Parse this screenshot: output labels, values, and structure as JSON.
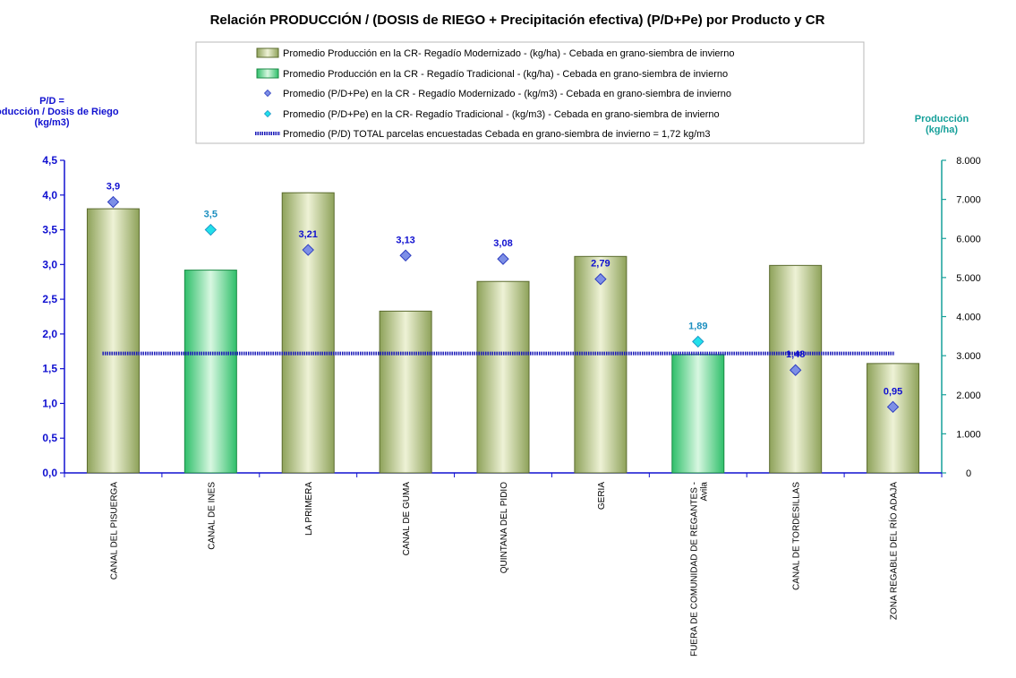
{
  "chart_data": {
    "type": "bar",
    "title": "Relación PRODUCCIÓN / (DOSIS de RIEGO + Precipitación efectiva)  (P/D+Pe) por Producto y CR",
    "y_left": {
      "label_lines": [
        "P/D =",
        "Producción / Dosis de Riego",
        "(kg/m3)"
      ],
      "range": [
        0,
        4.5
      ],
      "ticks": [
        "0,0",
        "0,5",
        "1,0",
        "1,5",
        "2,0",
        "2,5",
        "3,0",
        "3,5",
        "4,0",
        "4,5"
      ]
    },
    "y_right": {
      "label_lines": [
        "Producción",
        "(kg/ha)"
      ],
      "range": [
        0,
        8000
      ],
      "ticks": [
        "0",
        "1.000",
        "2.000",
        "3.000",
        "4.000",
        "5.000",
        "6.000",
        "7.000",
        "8.000"
      ]
    },
    "categories": [
      [
        "CANAL DEL PISUERGA"
      ],
      [
        "CANAL DE INES"
      ],
      [
        "LA PRIMERA"
      ],
      [
        "CANAL DE GUMA"
      ],
      [
        "QUINTANA DEL PIDIO"
      ],
      [
        "GERIA"
      ],
      [
        "FUERA DE COMUNIDAD DE REGANTES -",
        "Avila"
      ],
      [
        "CANAL DE TORDESILLAS"
      ],
      [
        "ZONA REGABLE DEL RÍO ADAJA"
      ]
    ],
    "series": [
      {
        "name": "Promedio Producción en la CR- Regadío Modernizado -  (kg/ha) - Cebada en grano-siembra de invierno",
        "kind": "bar",
        "axis": "right",
        "color": "#8ea25a",
        "values": [
          6760,
          null,
          7170,
          4140,
          4900,
          5540,
          null,
          5310,
          2800
        ]
      },
      {
        "name": "Promedio Producción en la CR - Regadío Tradicional -  (kg/ha) - Cebada en grano-siembra de invierno",
        "kind": "bar",
        "axis": "right",
        "color": "#2fbf6a",
        "values": [
          null,
          5190,
          null,
          null,
          null,
          null,
          3030,
          null,
          null
        ]
      },
      {
        "name": "Promedio (P/D+Pe) en la CR - Regadío Modernizado - (kg/m3) - Cebada en grano-siembra de invierno",
        "kind": "marker",
        "axis": "left",
        "color": "#7d8fe6",
        "values": [
          3.9,
          null,
          3.21,
          3.13,
          3.08,
          2.79,
          null,
          1.48,
          0.95
        ],
        "labels": [
          "3,9",
          null,
          "3,21",
          "3,13",
          "3,08",
          "2,79",
          null,
          "1,48",
          "0,95"
        ]
      },
      {
        "name": "Promedio (P/D+Pe) en la CR- Regadío Tradicional - (kg/m3) - Cebada en grano-siembra de invierno",
        "kind": "marker",
        "axis": "left",
        "color": "#22e0ea",
        "values": [
          null,
          3.5,
          null,
          null,
          null,
          null,
          1.89,
          null,
          null
        ],
        "labels": [
          null,
          "3,5",
          null,
          null,
          null,
          null,
          "1,89",
          null,
          null
        ]
      },
      {
        "name": "Promedio (P/D) TOTAL parcelas encuestadas Cebada en grano-siembra de invierno = 1,72 kg/m3",
        "kind": "line",
        "axis": "left",
        "color": "#1a1ab8",
        "value": 1.72
      }
    ],
    "grid": false,
    "legend_position": "top"
  }
}
